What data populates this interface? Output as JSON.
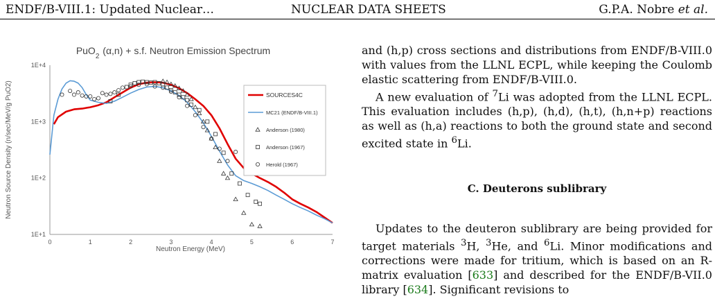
{
  "header": {
    "left": "ENDF/B-VIII.1: Updated Nuclear…",
    "center": "NUCLEAR DATA SHEETS",
    "right_authors": "G.P.A. Nobre",
    "right_etal": "et al."
  },
  "chart_data": {
    "type": "line",
    "title": "PuO2 (α,n) + s.f. Neutron Emission Spectrum",
    "xlabel": "Neutron Energy (MeV)",
    "ylabel": "Neutron Source Density (n/sec/MeV/g PuO2)",
    "xlim": [
      0,
      7
    ],
    "ylim": [
      10,
      10000
    ],
    "yscale": "log",
    "xticks": [
      "0",
      "1",
      "2",
      "3",
      "4",
      "5",
      "6",
      "7"
    ],
    "yticks": [
      "1E+1",
      "1E+2",
      "1E+3",
      "1E+4"
    ],
    "grid": false,
    "legend_position": "top-right",
    "series": [
      {
        "name": "SOURCES4C",
        "style": "line",
        "color": "#e00000",
        "x": [
          0.1,
          0.2,
          0.4,
          0.6,
          0.8,
          1.0,
          1.2,
          1.4,
          1.6,
          1.8,
          2.0,
          2.2,
          2.4,
          2.6,
          2.8,
          3.0,
          3.2,
          3.4,
          3.6,
          3.8,
          4.0,
          4.2,
          4.4,
          4.6,
          4.8,
          5.0,
          5.2,
          5.4,
          5.6,
          5.8,
          6.0,
          6.2,
          6.4,
          6.6,
          6.8,
          7.0
        ],
        "y": [
          900,
          1200,
          1500,
          1650,
          1700,
          1800,
          1950,
          2200,
          2700,
          3300,
          4000,
          4600,
          4900,
          5000,
          4900,
          4500,
          3900,
          3200,
          2500,
          1900,
          1300,
          760,
          400,
          220,
          150,
          120,
          100,
          85,
          70,
          55,
          42,
          35,
          30,
          25,
          20,
          16
        ]
      },
      {
        "name": "MC21 (ENDF/B-VIII.1)",
        "style": "line",
        "color": "#5b9bd5",
        "x": [
          0.0,
          0.1,
          0.2,
          0.3,
          0.4,
          0.5,
          0.6,
          0.7,
          0.8,
          0.9,
          1.0,
          1.2,
          1.4,
          1.6,
          1.8,
          2.0,
          2.2,
          2.4,
          2.6,
          2.8,
          3.0,
          3.2,
          3.4,
          3.6,
          3.8,
          4.0,
          4.2,
          4.4,
          4.6,
          4.8,
          5.0,
          5.2,
          5.4,
          5.6,
          5.8,
          6.0,
          6.2,
          6.4,
          6.6,
          6.8,
          7.0
        ],
        "y": [
          260,
          1300,
          2500,
          3800,
          4800,
          5300,
          5200,
          4800,
          4000,
          3000,
          2400,
          2200,
          2100,
          2300,
          2700,
          3200,
          3700,
          4100,
          4200,
          4000,
          3500,
          2900,
          2200,
          1500,
          950,
          550,
          300,
          170,
          110,
          90,
          80,
          70,
          60,
          50,
          42,
          35,
          30,
          26,
          22,
          19,
          16
        ]
      },
      {
        "name": "Anderson (1980)",
        "style": "marker",
        "marker": "triangle",
        "x": [
          2.8,
          2.9,
          3.0,
          3.1,
          3.2,
          3.3,
          3.4,
          3.5,
          3.6,
          3.7,
          3.8,
          3.9,
          4.0,
          4.1,
          4.2,
          4.3,
          4.4,
          4.6,
          4.8,
          5.0,
          5.2
        ],
        "y": [
          5200,
          5000,
          4600,
          4300,
          3900,
          3500,
          3000,
          2500,
          1800,
          1400,
          1000,
          700,
          500,
          350,
          200,
          120,
          100,
          42,
          24,
          15,
          14
        ]
      },
      {
        "name": "Anderson (1967)",
        "style": "marker",
        "marker": "square",
        "x": [
          1.5,
          1.7,
          1.9,
          2.0,
          2.1,
          2.2,
          2.3,
          2.4,
          2.5,
          2.6,
          2.7,
          2.8,
          2.9,
          3.0,
          3.1,
          3.2,
          3.3,
          3.4,
          3.5,
          3.7,
          3.9,
          4.1,
          4.3,
          4.5,
          4.7,
          4.9,
          5.1,
          5.2
        ],
        "y": [
          2300,
          3000,
          4100,
          4500,
          4800,
          5000,
          5100,
          5000,
          4900,
          5000,
          4800,
          4600,
          4000,
          3600,
          3300,
          3000,
          2700,
          2400,
          2000,
          1600,
          1000,
          600,
          280,
          120,
          80,
          50,
          38,
          35
        ]
      },
      {
        "name": "Herold (1967)",
        "style": "marker",
        "marker": "circle",
        "x": [
          0.3,
          0.5,
          0.6,
          0.7,
          0.8,
          0.9,
          1.0,
          1.1,
          1.2,
          1.3,
          1.4,
          1.5,
          1.6,
          1.7,
          1.8,
          2.0,
          2.2,
          2.4,
          2.6,
          2.8,
          3.0,
          3.2,
          3.4,
          3.6,
          3.8,
          4.0,
          4.2,
          4.4,
          4.6
        ],
        "y": [
          3000,
          3500,
          3000,
          3300,
          2900,
          2800,
          2800,
          2500,
          2600,
          3200,
          3000,
          3100,
          3300,
          3600,
          4000,
          4200,
          4500,
          4600,
          4200,
          4000,
          3400,
          2700,
          1900,
          1300,
          800,
          500,
          330,
          200,
          290
        ]
      }
    ]
  },
  "body": {
    "p1": "and (h,p) cross sections and distributions from ENDF/B-VIII.0 with values from the LLNL ECPL, while keeping the Coulomb elastic scattering from ENDF/B-VIII.0.",
    "p2_a": "A new evaluation of ",
    "p2_sup1": "7",
    "p2_b": "Li was adopted from the LLNL ECPL. This evaluation includes (h,p), (h,d), (h,t), (h,n+p) reactions as well as (h,a) reactions to both the ground state and second excited state in ",
    "p2_sup2": "6",
    "p2_c": "Li.",
    "section_title": "C.    Deuterons sublibrary",
    "p3_a": "Updates to the deuteron sublibrary are being provided for target materials ",
    "p3_sup1": "3",
    "p3_b": "H, ",
    "p3_sup2": "3",
    "p3_c": "He, and ",
    "p3_sup3": "6",
    "p3_d": "Li. Minor modifications and corrections were made for tritium, which is based on an R-matrix evaluation [",
    "p3_ref1": "633",
    "p3_e": "] and described for the ENDF/B-VII.0 library [",
    "p3_ref2": "634",
    "p3_f": "]. Significant revisions to"
  }
}
